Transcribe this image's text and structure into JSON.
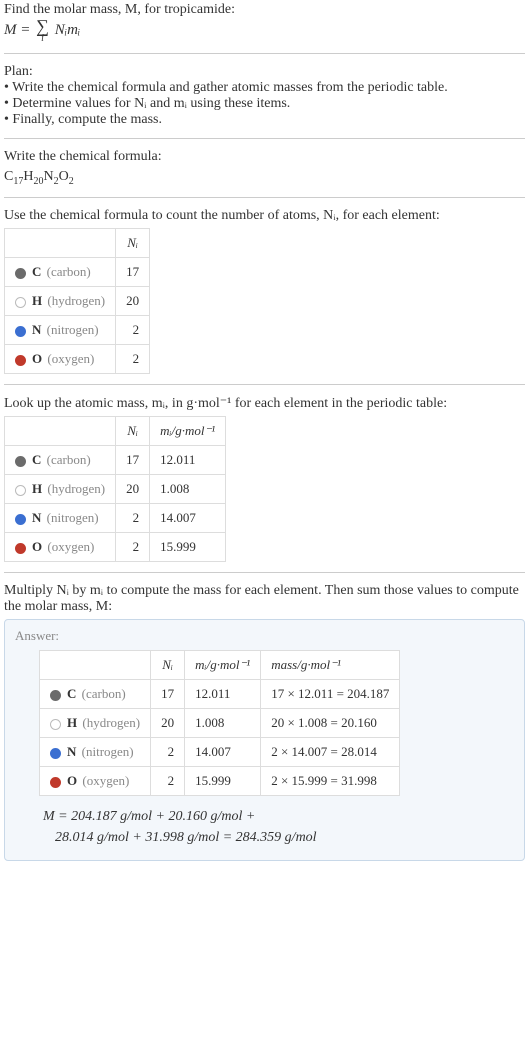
{
  "intro": {
    "line1": "Find the molar mass, M, for tropicamide:",
    "eq_left": "M = ",
    "eq_right": " Nᵢmᵢ",
    "sigma": "∑",
    "sigma_idx": "i"
  },
  "plan": {
    "heading": "Plan:",
    "b1": "• Write the chemical formula and gather atomic masses from the periodic table.",
    "b2": "• Determine values for Nᵢ and mᵢ using these items.",
    "b3": "• Finally, compute the mass."
  },
  "sect_formula": {
    "heading": "Write the chemical formula:",
    "formula_parts": {
      "c": "C",
      "c_n": "17",
      "h": "H",
      "h_n": "20",
      "n": "N",
      "n_n": "2",
      "o": "O",
      "o_n": "2"
    }
  },
  "sect_count": {
    "heading": "Use the chemical formula to count the number of atoms, Nᵢ, for each element:",
    "col_N": "Nᵢ"
  },
  "sect_mass": {
    "heading": "Look up the atomic mass, mᵢ, in g·mol⁻¹ for each element in the periodic table:",
    "col_N": "Nᵢ",
    "col_m": "mᵢ/g·mol⁻¹"
  },
  "sect_mult": {
    "heading": "Multiply Nᵢ by mᵢ to compute the mass for each element. Then sum those values to compute the molar mass, M:"
  },
  "answer": {
    "label": "Answer:",
    "col_N": "Nᵢ",
    "col_m": "mᵢ/g·mol⁻¹",
    "col_mass": "mass/g·mol⁻¹",
    "M_line1": "M = 204.187 g/mol + 20.160 g/mol +",
    "M_line2": "28.014 g/mol + 31.998 g/mol = 284.359 g/mol"
  },
  "elements": [
    {
      "sym": "C",
      "name": "(carbon)",
      "N": "17",
      "m": "12.011",
      "mass": "17 × 12.011 = 204.187",
      "dot_fill": "#6b6b6b",
      "dot_border": "#6b6b6b"
    },
    {
      "sym": "H",
      "name": "(hydrogen)",
      "N": "20",
      "m": "1.008",
      "mass": "20 × 1.008 = 20.160",
      "dot_fill": "#ffffff",
      "dot_border": "#bbbbbb"
    },
    {
      "sym": "N",
      "name": "(nitrogen)",
      "N": "2",
      "m": "14.007",
      "mass": "2 × 14.007 = 28.014",
      "dot_fill": "#3b6fd1",
      "dot_border": "#3b6fd1"
    },
    {
      "sym": "O",
      "name": "(oxygen)",
      "N": "2",
      "m": "15.999",
      "mass": "2 × 15.999 = 31.998",
      "dot_fill": "#c0392b",
      "dot_border": "#c0392b"
    }
  ]
}
